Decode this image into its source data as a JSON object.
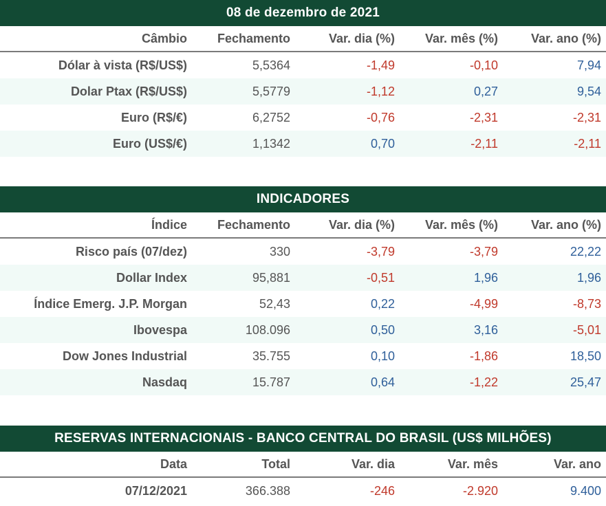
{
  "colors": {
    "header_bg": "#124a34",
    "negative": "#c0392b",
    "positive": "#2f5f9a",
    "alt_row": "#f1faf7"
  },
  "cambio": {
    "title": "08 de dezembro de 2021",
    "columns": [
      "Câmbio",
      "Fechamento",
      "Var. dia (%)",
      "Var. mês (%)",
      "Var. ano (%)"
    ],
    "rows": [
      {
        "name": "Dólar à vista (R$/US$)",
        "close": "5,5364",
        "day": "-1,49",
        "month": "-0,10",
        "year": "7,94"
      },
      {
        "name": "Dolar Ptax (R$/US$)",
        "close": "5,5779",
        "day": "-1,12",
        "month": "0,27",
        "year": "9,54"
      },
      {
        "name": "Euro (R$/€)",
        "close": "6,2752",
        "day": "-0,76",
        "month": "-2,31",
        "year": "-2,31"
      },
      {
        "name": "Euro (US$/€)",
        "close": "1,1342",
        "day": "0,70",
        "month": "-2,11",
        "year": "-2,11"
      }
    ]
  },
  "indicadores": {
    "title": "INDICADORES",
    "columns": [
      "Índice",
      "Fechamento",
      "Var. dia (%)",
      "Var. mês (%)",
      "Var. ano (%)"
    ],
    "rows": [
      {
        "name": "Risco país (07/dez)",
        "close": "330",
        "day": "-3,79",
        "month": "-3,79",
        "year": "22,22"
      },
      {
        "name": "Dollar Index",
        "close": "95,881",
        "day": "-0,51",
        "month": "1,96",
        "year": "1,96"
      },
      {
        "name": "Índice Emerg. J.P. Morgan",
        "close": "52,43",
        "day": "0,22",
        "month": "-4,99",
        "year": "-8,73"
      },
      {
        "name": "Ibovespa",
        "close": "108.096",
        "day": "0,50",
        "month": "3,16",
        "year": "-5,01"
      },
      {
        "name": "Dow Jones Industrial",
        "close": "35.755",
        "day": "0,10",
        "month": "-1,86",
        "year": "18,50"
      },
      {
        "name": "Nasdaq",
        "close": "15.787",
        "day": "0,64",
        "month": "-1,22",
        "year": "25,47"
      }
    ]
  },
  "reservas": {
    "title": "RESERVAS INTERNACIONAIS - BANCO CENTRAL DO BRASIL (US$ MILHÕES)",
    "columns": [
      "Data",
      "Total",
      "Var. dia",
      "Var. mês",
      "Var. ano"
    ],
    "rows": [
      {
        "name": "07/12/2021",
        "close": "366.388",
        "day": "-246",
        "month": "-2.920",
        "year": "9.400"
      }
    ]
  }
}
